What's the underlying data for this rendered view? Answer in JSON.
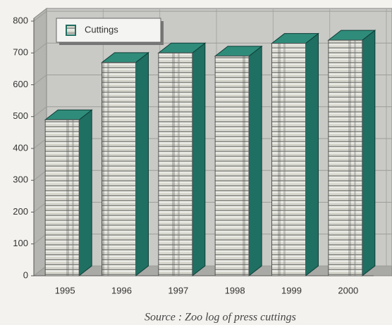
{
  "chart_data": {
    "type": "bar3d",
    "categories": [
      "1995",
      "1996",
      "1997",
      "1998",
      "1999",
      "2000"
    ],
    "series": [
      {
        "name": "Cuttings",
        "color": "#1f6f62",
        "values": [
          490,
          670,
          700,
          690,
          730,
          740
        ]
      }
    ],
    "ylim": [
      0,
      800
    ],
    "yticks": [
      0,
      100,
      200,
      300,
      400,
      500,
      600,
      700,
      800
    ],
    "grid": true,
    "legend": "top-left",
    "source": "Source : Zoo log of press cuttings"
  }
}
